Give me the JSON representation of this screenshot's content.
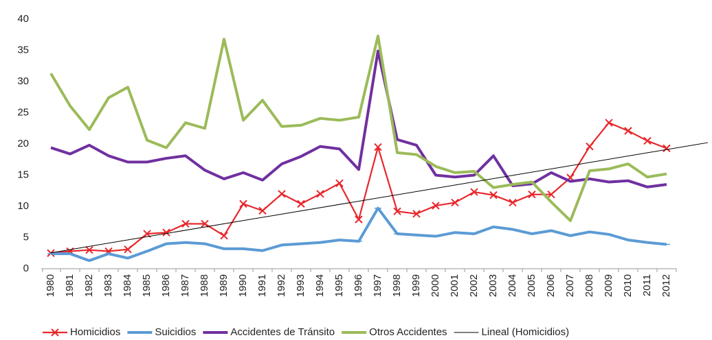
{
  "chart_data": {
    "type": "line",
    "categories": [
      "1980",
      "1981",
      "1982",
      "1983",
      "1984",
      "1985",
      "1986",
      "1987",
      "1988",
      "1989",
      "1990",
      "1991",
      "1992",
      "1993",
      "1994",
      "1995",
      "1996",
      "1997",
      "1998",
      "1999",
      "2000",
      "2001",
      "2002",
      "2003",
      "2004",
      "2005",
      "2006",
      "2007",
      "2008",
      "2009",
      "2010",
      "2011",
      "2012"
    ],
    "series": [
      {
        "name": "Homicidios",
        "color": "#e8262b",
        "marker": "x",
        "values": [
          2.5,
          2.8,
          3.0,
          2.8,
          3.1,
          5.6,
          5.8,
          7.2,
          7.2,
          5.3,
          10.4,
          9.3,
          12.0,
          10.4,
          12.0,
          13.7,
          7.9,
          19.5,
          9.2,
          8.8,
          10.1,
          10.6,
          12.3,
          11.8,
          10.6,
          11.9,
          11.9,
          14.6,
          19.6,
          23.4,
          22.1,
          20.5,
          19.3
        ]
      },
      {
        "name": "Suicidios",
        "color": "#5b9bd5",
        "marker": "dash",
        "values": [
          2.4,
          2.4,
          1.3,
          2.4,
          1.7,
          2.8,
          4.0,
          4.2,
          4.0,
          3.2,
          3.2,
          2.9,
          3.8,
          4.0,
          4.2,
          4.6,
          4.4,
          9.7,
          5.6,
          5.4,
          5.2,
          5.8,
          5.6,
          6.7,
          6.3,
          5.6,
          6.1,
          5.3,
          5.9,
          5.5,
          4.6,
          4.2,
          3.9
        ]
      },
      {
        "name": "Accidentes de Tránsito",
        "color": "#7030a0",
        "marker": "none",
        "values": [
          19.4,
          18.4,
          19.8,
          18.1,
          17.1,
          17.1,
          17.7,
          18.1,
          15.8,
          14.4,
          15.4,
          14.2,
          16.8,
          18.0,
          19.6,
          19.2,
          15.9,
          34.9,
          20.7,
          19.8,
          15.0,
          14.7,
          15.0,
          18.1,
          13.3,
          13.6,
          15.4,
          14.0,
          14.4,
          13.9,
          14.1,
          13.1,
          13.5
        ]
      },
      {
        "name": "Otros Accidentes",
        "color": "#9bbb59",
        "marker": "none",
        "values": [
          31.3,
          26.1,
          22.3,
          27.4,
          29.1,
          20.6,
          19.4,
          23.4,
          22.5,
          36.8,
          23.8,
          27.0,
          22.8,
          23.0,
          24.1,
          23.8,
          24.3,
          37.3,
          18.6,
          18.3,
          16.4,
          15.4,
          15.6,
          13.0,
          13.5,
          13.9,
          10.7,
          7.7,
          15.7,
          16.0,
          16.8,
          14.7,
          15.2
        ]
      }
    ],
    "trendline": {
      "name": "Lineal (Homicidios)",
      "color": "#000000",
      "of": 0
    },
    "ylim": [
      0,
      40
    ],
    "yticks": [
      0,
      5,
      10,
      15,
      20,
      25,
      30,
      35,
      40
    ],
    "grid": false,
    "legend": "bottom"
  }
}
